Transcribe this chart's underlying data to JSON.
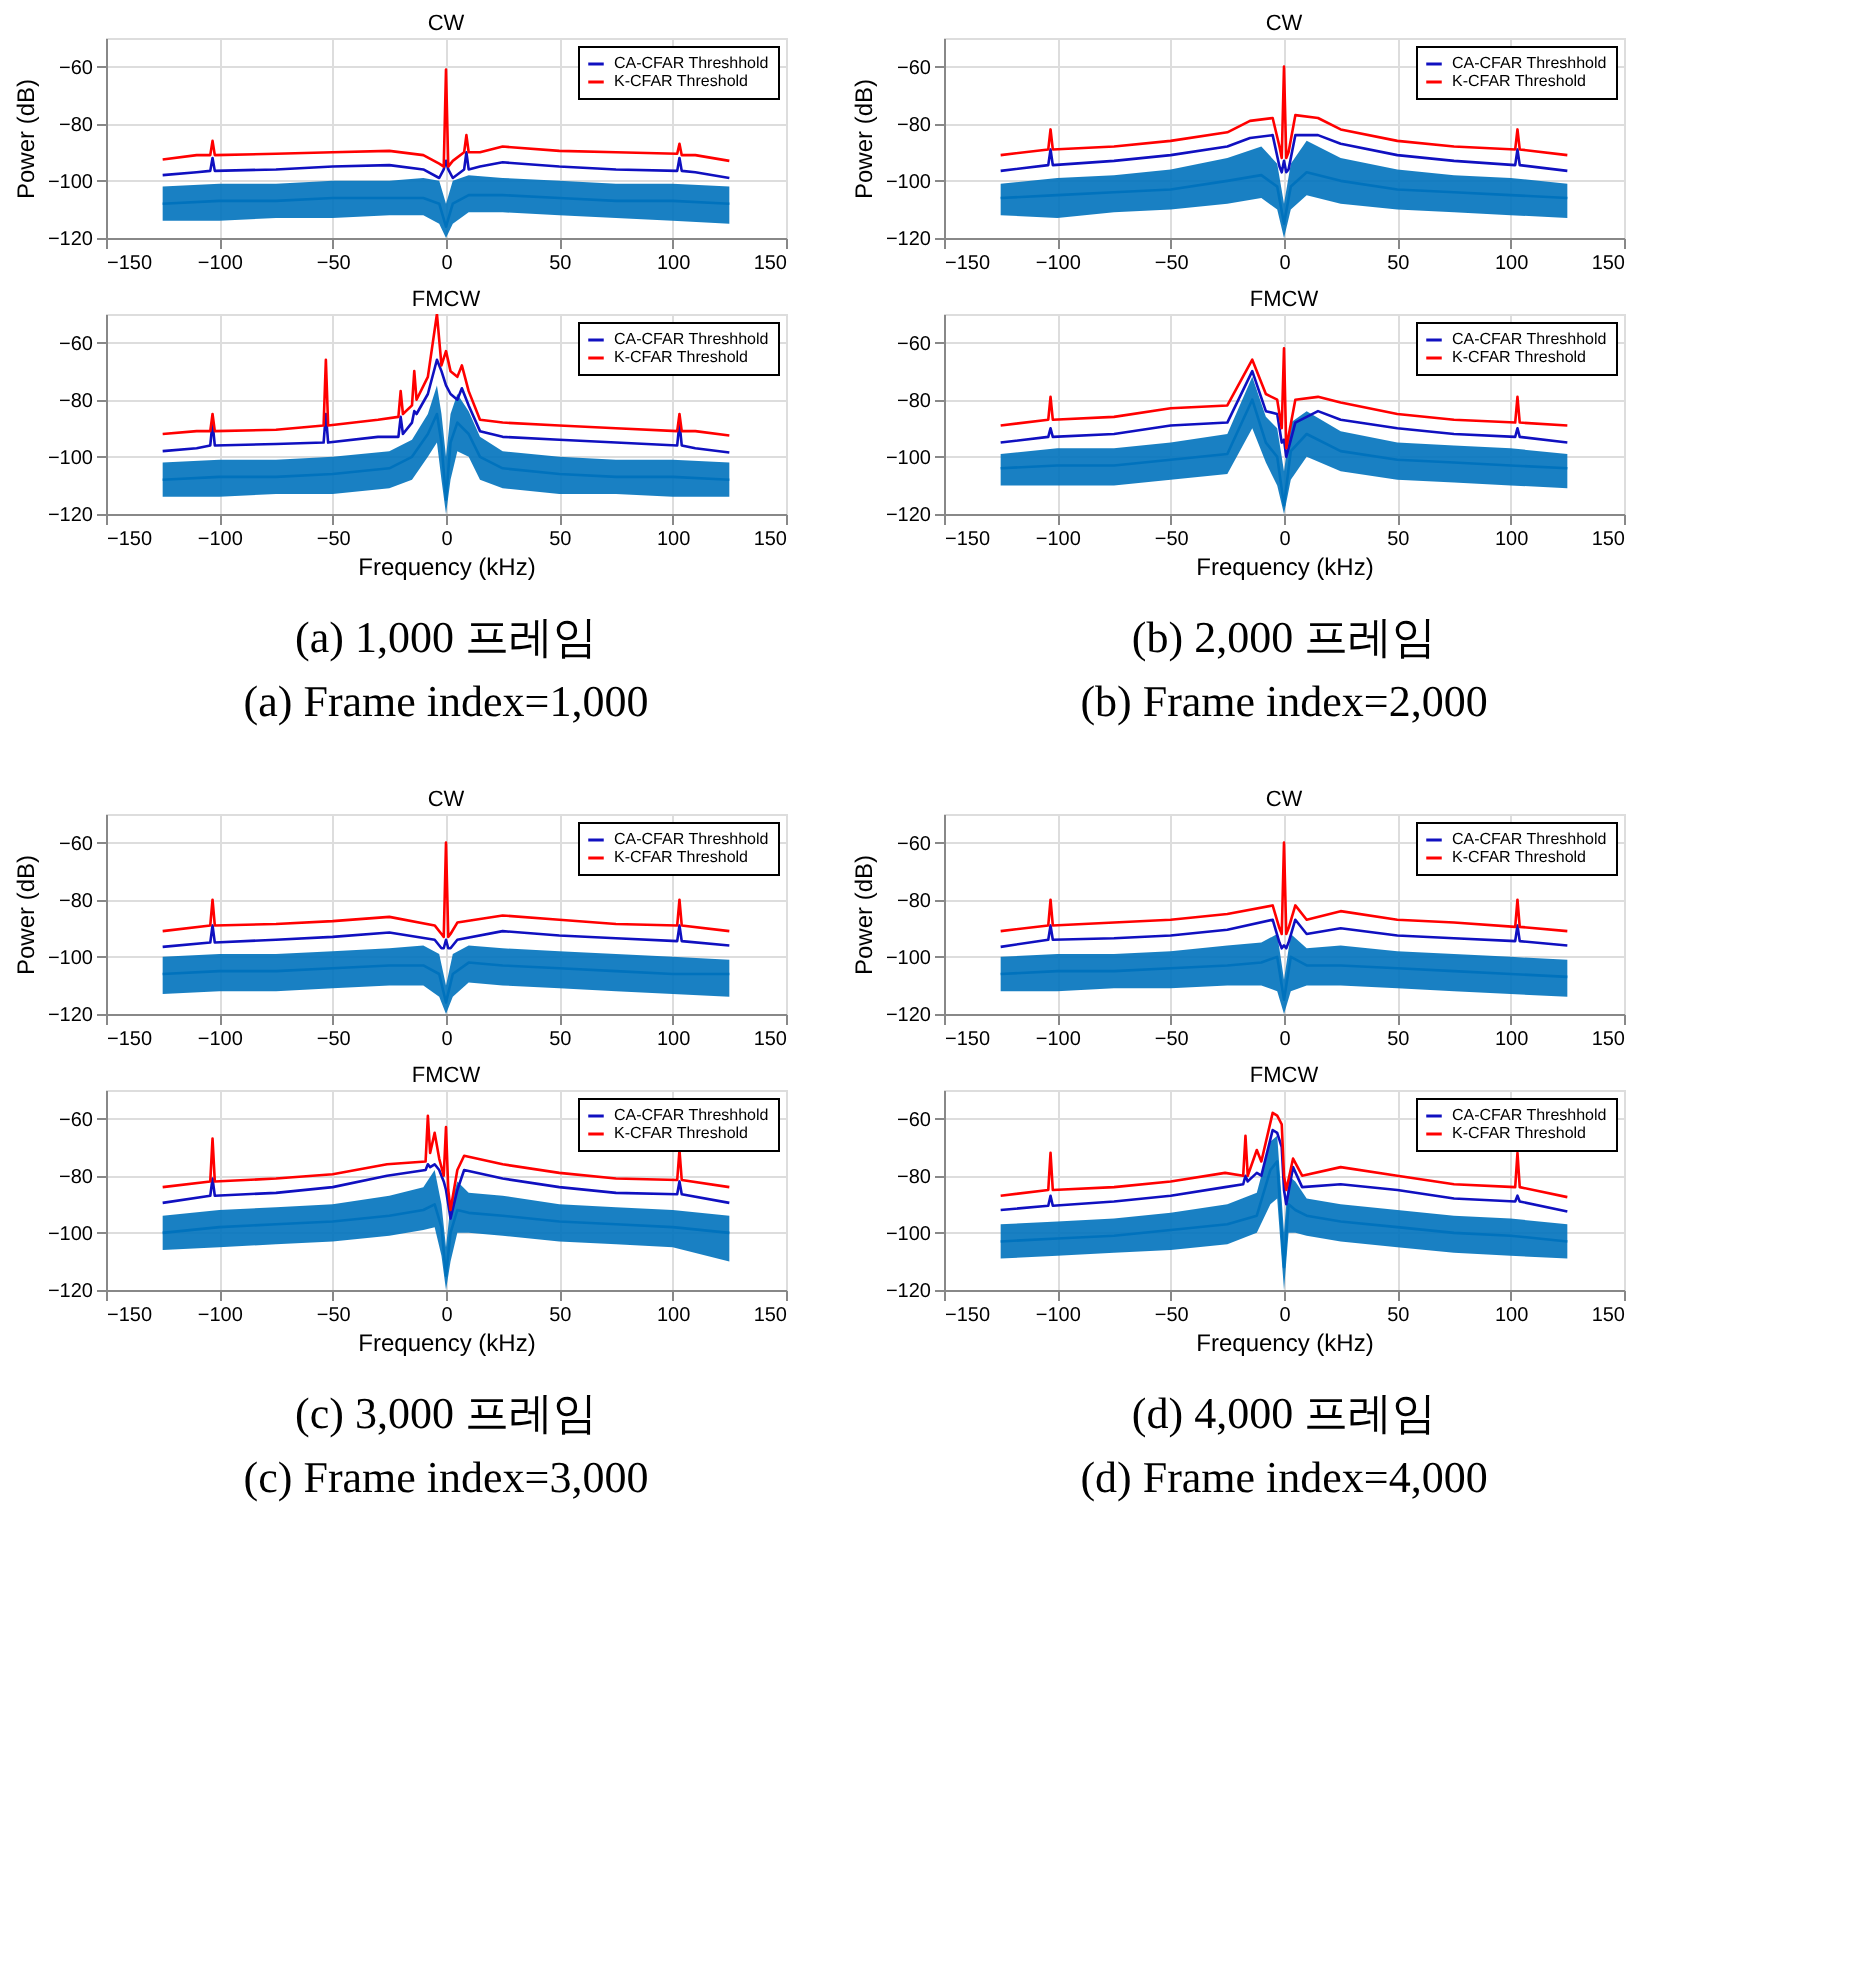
{
  "chart_data": [
    {
      "type": "line",
      "title": "CW",
      "ylabel": "Power (dB)",
      "xlim": [
        -150,
        150
      ],
      "xticks": [
        -150,
        -100,
        -50,
        0,
        50,
        100,
        150
      ],
      "ylim": [
        -120,
        -50
      ],
      "yticks": [
        -120,
        -100,
        -80,
        -60
      ],
      "grid": true,
      "legend": "top right",
      "x": [
        -125,
        -110,
        -104,
        -103,
        -102,
        -75,
        -50,
        -25,
        -10,
        -3,
        -1,
        0,
        1,
        3,
        8,
        9,
        10,
        15,
        25,
        50,
        75,
        102,
        103,
        104,
        110,
        125
      ],
      "series": [
        {
          "color": "#0072bd",
          "x": [
            -125,
            -100,
            -75,
            -50,
            -25,
            -10,
            -3,
            0,
            3,
            10,
            25,
            50,
            75,
            100,
            125
          ],
          "values": [
            -108,
            -107,
            -107,
            -106,
            -106,
            -106,
            -108,
            -116,
            -108,
            -105,
            -105,
            -106,
            -107,
            -107,
            -108
          ],
          "lower": [
            -114,
            -114,
            -113,
            -113,
            -112,
            -112,
            -115,
            -120,
            -115,
            -111,
            -111,
            -112,
            -113,
            -114,
            -115
          ],
          "upper": [
            -102,
            -101,
            -101,
            -100,
            -100,
            -99,
            -100,
            -108,
            -100,
            -98,
            -99,
            -100,
            -101,
            -101,
            -102
          ]
        },
        {
          "name": "CA-CFAR Threshhold",
          "color": "#1010c0",
          "values": [
            -98,
            -97,
            -96.5,
            -92,
            -96.5,
            -96,
            -95,
            -94.5,
            -96,
            -99,
            -96,
            -93,
            -96,
            -99,
            -96,
            -90,
            -96,
            -95,
            -93.5,
            -95,
            -96,
            -96.5,
            -92,
            -96.5,
            -97,
            -99
          ]
        },
        {
          "name": "K-CFAR Threshold",
          "color": "#ff0000",
          "values": [
            -92.5,
            -91,
            -91,
            -86,
            -91,
            -90.5,
            -90,
            -89.5,
            -91,
            -94,
            -95,
            -61,
            -95,
            -93,
            -90,
            -84,
            -90,
            -90,
            -88,
            -89.5,
            -90,
            -90.5,
            -87,
            -91,
            -91,
            -93
          ]
        }
      ]
    },
    {
      "type": "line",
      "title": "FMCW",
      "xlabel": "Frequency (kHz)",
      "xlim": [
        -150,
        150
      ],
      "xticks": [
        -150,
        -100,
        -50,
        0,
        50,
        100,
        150
      ],
      "ylim": [
        -120,
        -50
      ],
      "yticks": [
        -120,
        -100,
        -80,
        -60
      ],
      "grid": true,
      "legend": "top right",
      "annotations": [
        "(a) 1,000 프레임",
        "(a) Frame index=1,000"
      ],
      "x": [
        -125,
        -110,
        -104,
        -103,
        -102,
        -75,
        -54,
        -53,
        -52,
        -30,
        -21,
        -20,
        -19,
        -15,
        -14,
        -13,
        -8,
        -4,
        -2,
        0,
        2,
        5,
        7,
        10,
        15,
        25,
        50,
        75,
        102,
        103,
        104,
        110,
        125
      ],
      "series": [
        {
          "color": "#0072bd",
          "x": [
            -125,
            -100,
            -75,
            -50,
            -25,
            -15,
            -8,
            -4,
            -2,
            0,
            2,
            5,
            10,
            15,
            25,
            50,
            75,
            100,
            125
          ],
          "values": [
            -108,
            -107,
            -107,
            -106,
            -104,
            -100,
            -92,
            -85,
            -95,
            -115,
            -95,
            -88,
            -92,
            -100,
            -104,
            -106,
            -107,
            -107,
            -108
          ],
          "lower": [
            -114,
            -114,
            -113,
            -113,
            -111,
            -108,
            -100,
            -95,
            -108,
            -120,
            -108,
            -98,
            -100,
            -108,
            -111,
            -113,
            -113,
            -114,
            -114
          ],
          "upper": [
            -102,
            -101,
            -101,
            -100,
            -98,
            -94,
            -85,
            -75,
            -85,
            -100,
            -85,
            -78,
            -84,
            -93,
            -98,
            -100,
            -101,
            -101,
            -102
          ]
        },
        {
          "name": "CA-CFAR Threshhold",
          "color": "#1010c0",
          "values": [
            -98,
            -97,
            -96,
            -88,
            -96,
            -95.5,
            -95,
            -85,
            -95,
            -93,
            -93,
            -86,
            -92,
            -88,
            -84,
            -85,
            -78,
            -66,
            -70,
            -75,
            -78,
            -80,
            -76,
            -82,
            -91,
            -93,
            -94,
            -95,
            -96,
            -88,
            -96,
            -97,
            -98.5
          ]
        },
        {
          "name": "K-CFAR Threshold",
          "color": "#ff0000",
          "values": [
            -92,
            -91,
            -91,
            -85,
            -91,
            -90.5,
            -89,
            -66,
            -89,
            -87,
            -86,
            -77,
            -85,
            -82,
            -70,
            -80,
            -72,
            -50,
            -68,
            -63,
            -70,
            -72,
            -68,
            -77,
            -87,
            -88,
            -89,
            -90,
            -91,
            -85,
            -91,
            -91,
            -92.5
          ]
        }
      ]
    },
    {
      "type": "line",
      "title": "CW",
      "ylabel": "Power (dB)",
      "xlim": [
        -150,
        150
      ],
      "xticks": [
        -150,
        -100,
        -50,
        0,
        50,
        100,
        150
      ],
      "ylim": [
        -120,
        -50
      ],
      "yticks": [
        -120,
        -100,
        -80,
        -60
      ],
      "grid": true,
      "legend": "top right",
      "x": [
        -125,
        -104,
        -103,
        -102,
        -75,
        -50,
        -25,
        -15,
        -5,
        -2,
        -1,
        0,
        1,
        2,
        5,
        15,
        25,
        50,
        75,
        102,
        103,
        104,
        125
      ],
      "series": [
        {
          "color": "#0072bd",
          "x": [
            -125,
            -100,
            -75,
            -50,
            -25,
            -10,
            -3,
            0,
            3,
            10,
            25,
            50,
            75,
            100,
            125
          ],
          "values": [
            -106,
            -105,
            -104,
            -103,
            -100,
            -98,
            -102,
            -115,
            -102,
            -97,
            -100,
            -103,
            -104,
            -105,
            -106
          ],
          "lower": [
            -112,
            -113,
            -111,
            -110,
            -108,
            -106,
            -110,
            -120,
            -110,
            -105,
            -108,
            -110,
            -111,
            -112,
            -113
          ],
          "upper": [
            -101,
            -99,
            -98,
            -96,
            -92,
            -88,
            -94,
            -108,
            -94,
            -86,
            -92,
            -96,
            -98,
            -99,
            -101
          ]
        },
        {
          "name": "CA-CFAR Threshhold",
          "color": "#1010c0",
          "values": [
            -96.5,
            -94.5,
            -89,
            -94.5,
            -93,
            -91,
            -88,
            -85,
            -84,
            -95,
            -97,
            -93,
            -97,
            -96,
            -84,
            -84,
            -87,
            -91,
            -93,
            -94.5,
            -89,
            -94.5,
            -96.5
          ]
        },
        {
          "name": "K-CFAR Threshold",
          "color": "#ff0000",
          "values": [
            -91,
            -89,
            -82,
            -89,
            -88,
            -86,
            -83,
            -79,
            -78,
            -88,
            -92,
            -60,
            -92,
            -90,
            -77,
            -78,
            -82,
            -86,
            -88,
            -89,
            -82,
            -89,
            -91
          ]
        }
      ]
    },
    {
      "type": "line",
      "title": "FMCW",
      "xlabel": "Frequency (kHz)",
      "xlim": [
        -150,
        150
      ],
      "xticks": [
        -150,
        -100,
        -50,
        0,
        50,
        100,
        150
      ],
      "ylim": [
        -120,
        -50
      ],
      "yticks": [
        -120,
        -100,
        -80,
        -60
      ],
      "grid": true,
      "legend": "top right",
      "annotations": [
        "(b) 2,000 프레임",
        "(b) Frame index=2,000"
      ],
      "x": [
        -125,
        -104,
        -103,
        -102,
        -75,
        -50,
        -25,
        -14,
        -8,
        -3,
        -1,
        0,
        1,
        5,
        15,
        25,
        50,
        75,
        102,
        103,
        104,
        125
      ],
      "series": [
        {
          "color": "#0072bd",
          "x": [
            -125,
            -100,
            -75,
            -50,
            -25,
            -14,
            -8,
            -3,
            0,
            3,
            10,
            25,
            50,
            75,
            100,
            125
          ],
          "values": [
            -104,
            -103,
            -103,
            -101,
            -99,
            -80,
            -95,
            -100,
            -117,
            -98,
            -92,
            -98,
            -101,
            -102,
            -103,
            -104
          ],
          "lower": [
            -110,
            -110,
            -110,
            -108,
            -106,
            -90,
            -102,
            -110,
            -120,
            -108,
            -100,
            -105,
            -108,
            -109,
            -110,
            -111
          ],
          "upper": [
            -99,
            -97,
            -97,
            -95,
            -92,
            -72,
            -86,
            -90,
            -105,
            -88,
            -84,
            -91,
            -95,
            -96,
            -97,
            -99
          ]
        },
        {
          "name": "CA-CFAR Threshhold",
          "color": "#1010c0",
          "values": [
            -95,
            -93,
            -90,
            -93,
            -92,
            -89,
            -88,
            -70,
            -84,
            -85,
            -95,
            -94,
            -100,
            -88,
            -84,
            -87,
            -90,
            -92,
            -93,
            -90,
            -93,
            -95
          ]
        },
        {
          "name": "K-CFAR Threshold",
          "color": "#ff0000",
          "values": [
            -89,
            -87,
            -79,
            -87,
            -86,
            -83,
            -82,
            -66,
            -78,
            -80,
            -90,
            -62,
            -97,
            -80,
            -79,
            -81,
            -85,
            -87,
            -88,
            -79,
            -88,
            -89
          ]
        }
      ]
    },
    {
      "type": "line",
      "title": "CW",
      "ylabel": "Power (dB)",
      "xlim": [
        -150,
        150
      ],
      "xticks": [
        -150,
        -100,
        -50,
        0,
        50,
        100,
        150
      ],
      "ylim": [
        -120,
        -50
      ],
      "yticks": [
        -120,
        -100,
        -80,
        -60
      ],
      "grid": true,
      "legend": "top right",
      "x": [
        -125,
        -104,
        -103,
        -102,
        -75,
        -50,
        -25,
        -5,
        -2,
        -1,
        0,
        1,
        2,
        5,
        25,
        50,
        75,
        102,
        103,
        104,
        125
      ],
      "series": [
        {
          "color": "#0072bd",
          "x": [
            -125,
            -100,
            -75,
            -50,
            -25,
            -10,
            -3,
            0,
            3,
            10,
            25,
            50,
            75,
            100,
            125
          ],
          "values": [
            -106,
            -105,
            -105,
            -104,
            -103,
            -103,
            -106,
            -116,
            -106,
            -102,
            -103,
            -104,
            -105,
            -106,
            -106
          ],
          "lower": [
            -113,
            -112,
            -112,
            -111,
            -110,
            -110,
            -114,
            -120,
            -114,
            -109,
            -110,
            -111,
            -112,
            -113,
            -114
          ],
          "upper": [
            -100,
            -99,
            -99,
            -98,
            -97,
            -96,
            -99,
            -110,
            -99,
            -96,
            -97,
            -98,
            -99,
            -100,
            -101
          ]
        },
        {
          "name": "CA-CFAR Threshhold",
          "color": "#1010c0",
          "values": [
            -96.5,
            -95,
            -89,
            -95,
            -94,
            -93,
            -91.5,
            -94,
            -97,
            -97,
            -94,
            -97,
            -97,
            -94,
            -91,
            -92.5,
            -93.5,
            -94.5,
            -89,
            -94.5,
            -96
          ]
        },
        {
          "name": "K-CFAR Threshold",
          "color": "#ff0000",
          "values": [
            -91,
            -89,
            -80,
            -89,
            -88.5,
            -87.5,
            -86,
            -89,
            -92,
            -93,
            -60,
            -93,
            -92,
            -88,
            -85.5,
            -87,
            -88.5,
            -89,
            -80,
            -89,
            -91
          ]
        }
      ]
    },
    {
      "type": "line",
      "title": "FMCW",
      "xlabel": "Frequency (kHz)",
      "xlim": [
        -150,
        150
      ],
      "xticks": [
        -150,
        -100,
        -50,
        0,
        50,
        100,
        150
      ],
      "ylim": [
        -120,
        -50
      ],
      "yticks": [
        -120,
        -100,
        -80,
        -60
      ],
      "grid": true,
      "legend": "top right",
      "annotations": [
        "(c) 3,000 프레임",
        "(c) Frame index=3,000"
      ],
      "x": [
        -125,
        -104,
        -103,
        -102,
        -75,
        -50,
        -26,
        -9,
        -8,
        -7,
        -5,
        -3,
        -1,
        0,
        1,
        2,
        5,
        8,
        25,
        50,
        75,
        102,
        103,
        104,
        125
      ],
      "series": [
        {
          "color": "#0072bd",
          "x": [
            -125,
            -100,
            -75,
            -50,
            -25,
            -10,
            -5,
            -2,
            0,
            2,
            5,
            10,
            25,
            50,
            75,
            100,
            125
          ],
          "values": [
            -100,
            -98,
            -97,
            -96,
            -94,
            -92,
            -90,
            -98,
            -115,
            -100,
            -92,
            -93,
            -94,
            -96,
            -97,
            -98,
            -100
          ],
          "lower": [
            -106,
            -105,
            -104,
            -103,
            -101,
            -99,
            -98,
            -108,
            -120,
            -110,
            -100,
            -100,
            -101,
            -103,
            -104,
            -105,
            -110
          ],
          "upper": [
            -94,
            -92,
            -91,
            -90,
            -87,
            -84,
            -78,
            -90,
            -105,
            -90,
            -82,
            -86,
            -87,
            -90,
            -91,
            -92,
            -94
          ]
        },
        {
          "name": "CA-CFAR Threshhold",
          "color": "#1010c0",
          "values": [
            -89.5,
            -87,
            -81,
            -87,
            -86,
            -84,
            -80,
            -78,
            -76,
            -77,
            -76,
            -78,
            -82,
            -85,
            -90,
            -95,
            -85,
            -78,
            -81,
            -84,
            -86,
            -86.5,
            -82,
            -86.5,
            -89.5
          ]
        },
        {
          "name": "K-CFAR Threshold",
          "color": "#ff0000",
          "values": [
            -84,
            -82,
            -67,
            -82,
            -81,
            -79.5,
            -76,
            -75,
            -59,
            -72,
            -65,
            -74,
            -80,
            -63,
            -85,
            -92,
            -78,
            -73,
            -76,
            -79,
            -81,
            -81.5,
            -71,
            -81.5,
            -84
          ]
        }
      ]
    },
    {
      "type": "line",
      "title": "CW",
      "ylabel": "Power (dB)",
      "xlim": [
        -150,
        150
      ],
      "xticks": [
        -150,
        -100,
        -50,
        0,
        50,
        100,
        150
      ],
      "ylim": [
        -120,
        -50
      ],
      "yticks": [
        -120,
        -100,
        -80,
        -60
      ],
      "grid": true,
      "legend": "top right",
      "x": [
        -125,
        -104,
        -103,
        -102,
        -75,
        -50,
        -25,
        -5,
        -2,
        -1,
        0,
        1,
        2,
        5,
        10,
        25,
        50,
        75,
        102,
        103,
        104,
        125
      ],
      "series": [
        {
          "color": "#0072bd",
          "x": [
            -125,
            -100,
            -75,
            -50,
            -25,
            -10,
            -3,
            0,
            3,
            10,
            25,
            50,
            75,
            100,
            125
          ],
          "values": [
            -106,
            -105,
            -105,
            -104,
            -103,
            -102,
            -100,
            -115,
            -100,
            -103,
            -103,
            -104,
            -105,
            -106,
            -107
          ],
          "lower": [
            -112,
            -112,
            -111,
            -111,
            -110,
            -110,
            -112,
            -120,
            -112,
            -110,
            -110,
            -111,
            -112,
            -113,
            -114
          ],
          "upper": [
            -100,
            -99,
            -99,
            -98,
            -96,
            -95,
            -92,
            -108,
            -92,
            -97,
            -96,
            -98,
            -99,
            -100,
            -101
          ]
        },
        {
          "name": "CA-CFAR Threshhold",
          "color": "#1010c0",
          "values": [
            -96.5,
            -94,
            -89,
            -94,
            -93.5,
            -92.5,
            -90.5,
            -87,
            -95,
            -97,
            -96,
            -97,
            -95,
            -87,
            -92,
            -90,
            -92.5,
            -93.5,
            -94.5,
            -89,
            -94.5,
            -96
          ]
        },
        {
          "name": "K-CFAR Threshold",
          "color": "#ff0000",
          "values": [
            -91,
            -89,
            -80,
            -89,
            -88,
            -87,
            -85,
            -82,
            -90,
            -92,
            -60,
            -92,
            -90,
            -82,
            -87,
            -84,
            -87,
            -88,
            -89.5,
            -80,
            -89.5,
            -91
          ]
        }
      ]
    },
    {
      "type": "line",
      "title": "FMCW",
      "xlabel": "Frequency (kHz)",
      "xlim": [
        -150,
        150
      ],
      "xticks": [
        -150,
        -100,
        -50,
        0,
        50,
        100,
        150
      ],
      "ylim": [
        -120,
        -50
      ],
      "yticks": [
        -120,
        -100,
        -80,
        -60
      ],
      "grid": true,
      "legend": "top right",
      "annotations": [
        "(d) 4,000 프레임",
        "(d) Frame index=4,000"
      ],
      "x": [
        -125,
        -104,
        -103,
        -102,
        -75,
        -50,
        -26,
        -18,
        -17,
        -16,
        -12,
        -10,
        -5,
        -3,
        -1,
        0,
        1,
        4,
        8,
        25,
        50,
        75,
        102,
        103,
        104,
        125
      ],
      "series": [
        {
          "color": "#0072bd",
          "x": [
            -125,
            -100,
            -75,
            -50,
            -25,
            -12,
            -6,
            -3,
            0,
            2,
            5,
            10,
            25,
            50,
            75,
            100,
            125
          ],
          "values": [
            -103,
            -102,
            -101,
            -99,
            -97,
            -94,
            -78,
            -75,
            -112,
            -90,
            -92,
            -94,
            -96,
            -98,
            -100,
            -101,
            -103
          ],
          "lower": [
            -109,
            -108,
            -107,
            -106,
            -104,
            -100,
            -90,
            -88,
            -120,
            -100,
            -100,
            -101,
            -103,
            -105,
            -107,
            -108,
            -109
          ],
          "upper": [
            -97,
            -96,
            -95,
            -93,
            -90,
            -86,
            -68,
            -66,
            -100,
            -80,
            -82,
            -88,
            -90,
            -92,
            -94,
            -95,
            -97
          ]
        },
        {
          "name": "CA-CFAR Threshhold",
          "color": "#1010c0",
          "values": [
            -92,
            -90.5,
            -87,
            -90.5,
            -89,
            -87,
            -84,
            -83,
            -80,
            -82,
            -79,
            -80,
            -64,
            -65,
            -70,
            -85,
            -90,
            -77,
            -84,
            -83,
            -85,
            -88,
            -89,
            -87,
            -89,
            -92.5
          ]
        },
        {
          "name": "K-CFAR Threshold",
          "color": "#ff0000",
          "values": [
            -87,
            -85,
            -72,
            -85,
            -84,
            -82,
            -79,
            -80,
            -66,
            -80,
            -71,
            -75,
            -58,
            -59,
            -62,
            -80,
            -85,
            -74,
            -80,
            -77,
            -80,
            -83,
            -84,
            -72,
            -84,
            -87.5
          ]
        }
      ]
    }
  ]
}
